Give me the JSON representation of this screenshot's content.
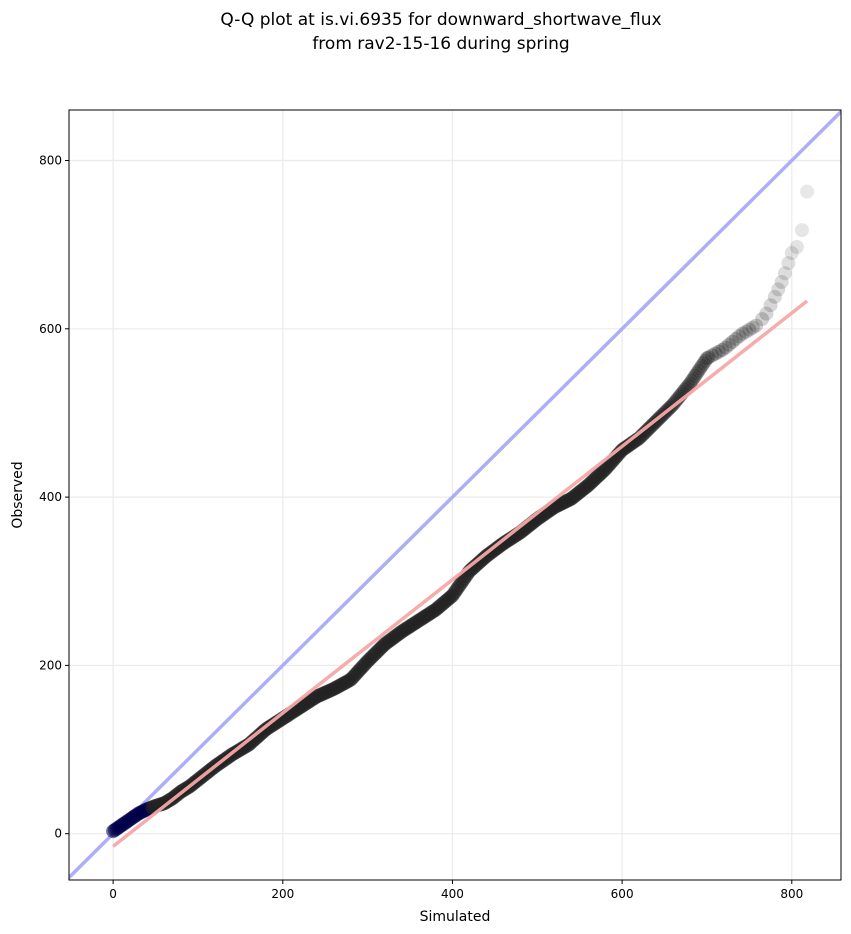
{
  "chart_data": {
    "type": "scatter",
    "title_line1": "Q-Q plot at is.vi.6935 for downward_shortwave_flux",
    "title_line2": "from rav2-15-16 during spring",
    "xlabel": "Simulated",
    "ylabel": "Observed",
    "xlim": [
      -52,
      858
    ],
    "ylim": [
      -55,
      860
    ],
    "xticks": [
      0,
      200,
      400,
      600,
      800
    ],
    "yticks": [
      0,
      200,
      400,
      600,
      800
    ],
    "grid": true,
    "reference_line": {
      "kind": "1:1",
      "color": "#aaaaf5"
    },
    "fit_line": {
      "color": "#f7a8a8",
      "x": [
        0,
        818
      ],
      "y": [
        -15,
        633
      ]
    },
    "point_color": "#222222",
    "low_point_color": "#00004a",
    "quantile_curve": {
      "x": [
        0,
        10,
        20,
        30,
        40,
        50,
        60,
        70,
        80,
        90,
        100,
        120,
        140,
        160,
        180,
        200,
        220,
        240,
        260,
        280,
        300,
        320,
        340,
        360,
        380,
        400,
        420,
        440,
        460,
        480,
        500,
        520,
        540,
        560,
        580,
        600,
        620,
        640,
        660,
        680,
        700,
        720,
        740,
        760,
        770,
        780,
        790,
        800,
        810,
        818
      ],
      "y": [
        3,
        10,
        17,
        24,
        29,
        33,
        36,
        42,
        50,
        56,
        64,
        80,
        94,
        106,
        124,
        137,
        150,
        163,
        172,
        183,
        205,
        225,
        240,
        253,
        266,
        283,
        312,
        330,
        345,
        358,
        374,
        388,
        398,
        414,
        433,
        456,
        470,
        490,
        510,
        535,
        565,
        576,
        593,
        605,
        618,
        638,
        660,
        690,
        702,
        763
      ]
    }
  }
}
